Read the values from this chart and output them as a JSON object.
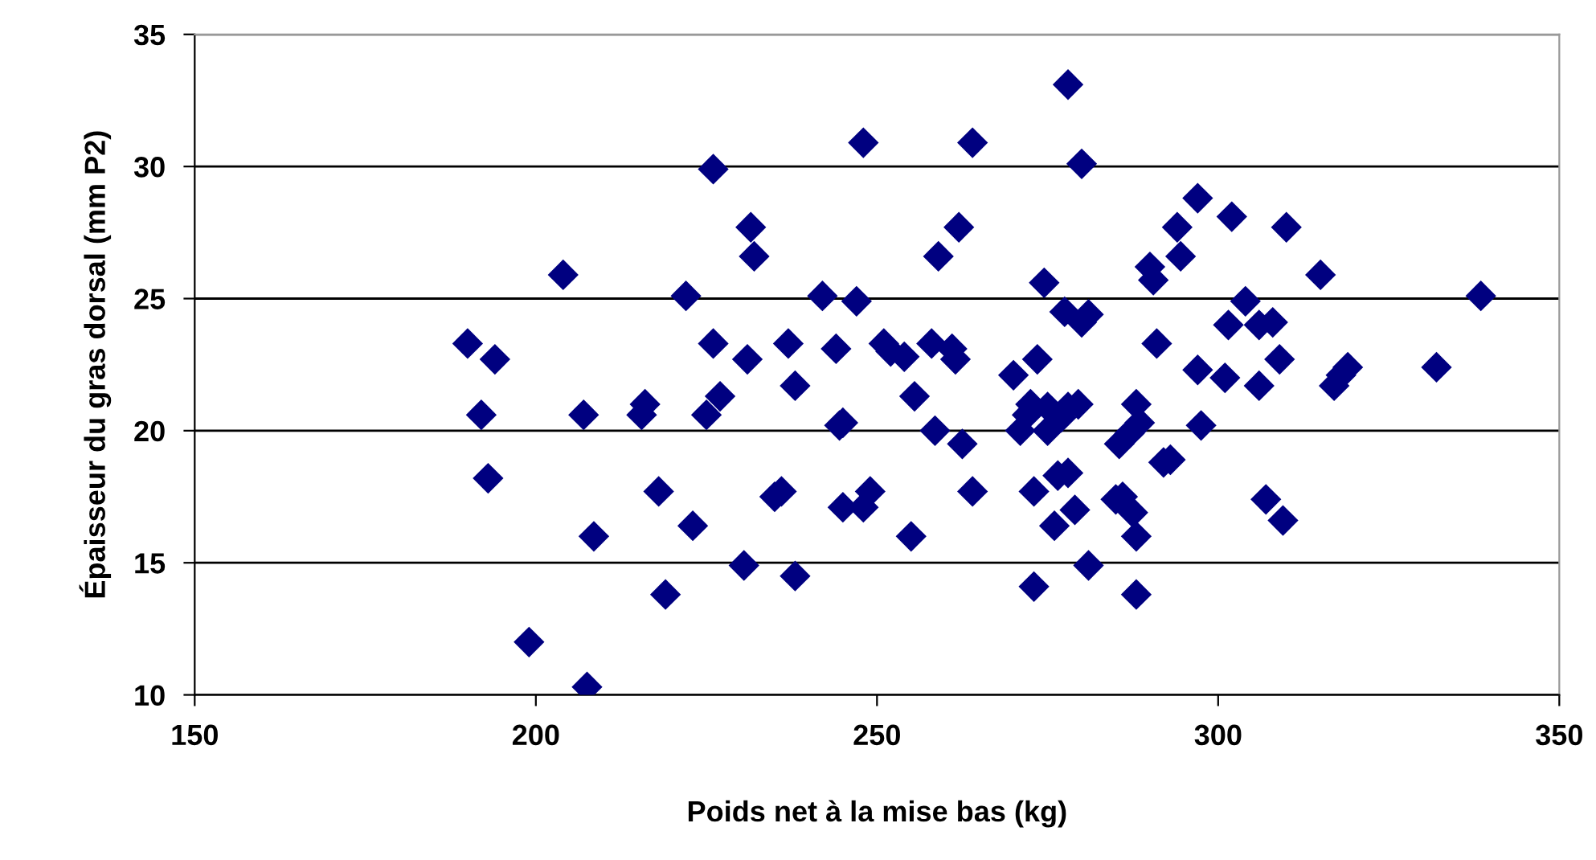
{
  "chart_data": {
    "type": "scatter",
    "xlabel": "Poids net à la mise bas (kg)",
    "ylabel": "Épaisseur du gras dorsal (mm P2)",
    "xlim": [
      150,
      350
    ],
    "xticks": [
      150,
      200,
      250,
      300,
      350
    ],
    "ylim": [
      10,
      35
    ],
    "yticks": [
      10,
      15,
      20,
      25,
      30,
      35
    ],
    "grid": "y",
    "marker": "diamond",
    "series": [
      {
        "color": "#000080",
        "x": [
          190,
          192,
          193,
          194,
          199,
          204,
          207,
          207.5,
          208.5,
          215.5,
          216,
          218,
          219,
          222,
          223,
          225,
          226,
          226,
          227,
          230.5,
          231,
          231.5,
          232,
          235,
          236,
          237,
          238,
          238,
          242,
          244,
          244.5,
          245,
          245,
          247,
          248,
          248,
          249,
          251,
          252,
          254,
          255,
          255.5,
          258,
          258.5,
          259,
          261,
          261.5,
          262,
          262.5,
          264,
          264,
          270,
          271,
          272,
          272.5,
          273,
          273,
          273.5,
          274.5,
          275,
          275,
          276,
          276.5,
          277,
          277.5,
          278,
          278,
          278,
          279,
          279.5,
          280,
          280,
          281,
          281,
          285,
          285.5,
          286,
          287,
          287.5,
          288,
          288,
          288,
          288.5,
          290,
          290.5,
          291,
          292,
          293,
          294,
          294.5,
          297,
          297,
          297.5,
          301,
          301.5,
          302,
          304,
          306,
          306,
          307,
          308,
          309,
          309.5,
          310,
          315,
          317,
          318,
          319,
          332,
          338.5
        ],
        "values": [
          23.3,
          20.6,
          18.2,
          22.7,
          12,
          25.9,
          20.6,
          10.3,
          16,
          20.6,
          21,
          17.7,
          13.8,
          25.1,
          16.4,
          20.6,
          29.9,
          23.3,
          21.3,
          14.9,
          22.7,
          27.7,
          26.6,
          17.5,
          17.7,
          23.3,
          21.7,
          14.5,
          25.1,
          23.1,
          20.2,
          20.3,
          17.1,
          24.9,
          30.9,
          17.1,
          17.7,
          23.3,
          23,
          22.8,
          16,
          21.3,
          23.3,
          20,
          26.6,
          23.1,
          22.7,
          27.7,
          19.5,
          30.9,
          17.7,
          22.1,
          20,
          20.6,
          21,
          17.7,
          14.1,
          22.7,
          25.6,
          20.9,
          20,
          16.4,
          18.3,
          20.5,
          24.5,
          20.9,
          33.1,
          18.4,
          17,
          21,
          30.1,
          24.1,
          14.9,
          24.4,
          17.4,
          19.5,
          17.5,
          19.9,
          16.9,
          21,
          16,
          13.8,
          20.3,
          26.2,
          25.7,
          23.3,
          18.8,
          18.9,
          27.7,
          26.6,
          28.8,
          22.3,
          20.2,
          22,
          24,
          28.1,
          24.9,
          21.7,
          24,
          17.4,
          24.1,
          22.7,
          16.6,
          27.7,
          25.9,
          21.7,
          22.1,
          22.4,
          22.4,
          25.1
        ]
      }
    ]
  }
}
